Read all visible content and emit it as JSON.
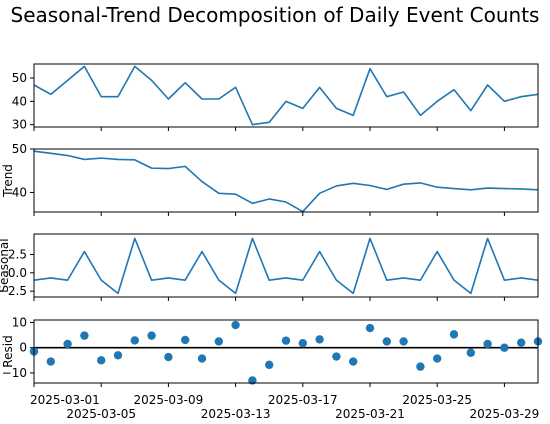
{
  "chart_data": {
    "type": "line",
    "title": "Seasonal-Trend Decomposition of Daily Event Counts",
    "x": [
      "2025-03-01",
      "2025-03-02",
      "2025-03-03",
      "2025-03-04",
      "2025-03-05",
      "2025-03-06",
      "2025-03-07",
      "2025-03-08",
      "2025-03-09",
      "2025-03-10",
      "2025-03-11",
      "2025-03-12",
      "2025-03-13",
      "2025-03-14",
      "2025-03-15",
      "2025-03-16",
      "2025-03-17",
      "2025-03-18",
      "2025-03-19",
      "2025-03-20",
      "2025-03-21",
      "2025-03-22",
      "2025-03-23",
      "2025-03-24",
      "2025-03-25",
      "2025-03-26",
      "2025-03-27",
      "2025-03-28",
      "2025-03-29",
      "2025-03-30",
      "2025-03-31"
    ],
    "x_ticks": [
      "2025-03-01",
      "2025-03-05",
      "2025-03-09",
      "2025-03-13",
      "2025-03-17",
      "2025-03-21",
      "2025-03-25",
      "2025-03-29"
    ],
    "xlim": [
      "2025-03-01",
      "2025-03-31"
    ],
    "panels": [
      {
        "ylabel": "",
        "kind": "line",
        "ylim": [
          29,
          56
        ],
        "yticks": [
          "30",
          "40",
          "50"
        ],
        "ytick_values": [
          30,
          40,
          50
        ],
        "values": [
          47,
          43,
          49,
          55,
          42,
          42,
          55,
          49,
          41,
          48,
          41,
          41,
          46,
          30,
          31,
          40,
          37,
          46,
          37,
          34,
          54,
          42,
          44,
          34,
          40,
          45,
          36,
          47,
          40,
          42,
          43
        ]
      },
      {
        "ylabel": "Trend",
        "kind": "line",
        "ylim": [
          35.5,
          50
        ],
        "yticks": [
          "40",
          "50"
        ],
        "ytick_values": [
          40,
          50
        ],
        "values": [
          49.5,
          49.0,
          48.5,
          47.6,
          47.9,
          47.6,
          47.5,
          45.6,
          45.5,
          46.0,
          42.5,
          39.8,
          39.6,
          37.5,
          38.5,
          37.8,
          35.6,
          39.8,
          41.5,
          42.1,
          41.6,
          40.7,
          41.9,
          42.2,
          41.2,
          40.9,
          40.6,
          41.0,
          40.9,
          40.8,
          40.6
        ]
      },
      {
        "ylabel": "Seasonal",
        "kind": "line",
        "ylim": [
          -3.3,
          5.3
        ],
        "yticks": [
          "−2.5",
          "0.0",
          "2.5"
        ],
        "ytick_values": [
          -2.5,
          0,
          2.5
        ],
        "values": [
          -1.0,
          -0.7,
          -1.0,
          2.9,
          -1.0,
          -2.8,
          4.7,
          -1.0,
          -0.7,
          -1.0,
          2.9,
          -1.0,
          -2.8,
          4.7,
          -1.0,
          -0.7,
          -1.0,
          2.9,
          -1.0,
          -2.8,
          4.7,
          -1.0,
          -0.7,
          -1.0,
          2.9,
          -1.0,
          -2.8,
          4.7,
          -1.0,
          -0.7,
          -1.0
        ]
      },
      {
        "ylabel": "Resid",
        "kind": "scatter",
        "ylim": [
          -14,
          11
        ],
        "yticks": [
          "−10",
          "0",
          "10"
        ],
        "ytick_values": [
          -10,
          0,
          10
        ],
        "zero_line": true,
        "values": [
          -1.5,
          -5.5,
          1.5,
          4.8,
          -5.0,
          -3.0,
          2.9,
          4.8,
          -3.7,
          3.1,
          -4.3,
          2.5,
          9.0,
          -13.0,
          -6.8,
          2.8,
          1.8,
          3.3,
          -3.5,
          -5.5,
          7.8,
          2.5,
          2.5,
          -7.5,
          -4.3,
          5.3,
          -2.0,
          1.5,
          0.0,
          2.0,
          2.5
        ]
      }
    ],
    "grid": false,
    "legend": "none"
  },
  "colors": {
    "series": "#1f77b4",
    "axes": "#000000"
  }
}
